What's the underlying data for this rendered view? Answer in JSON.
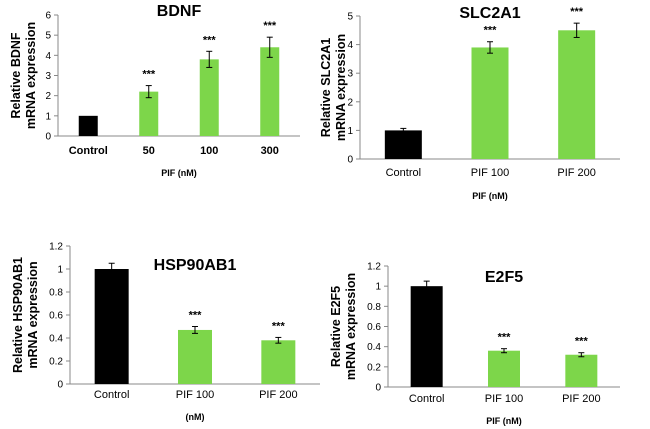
{
  "chart_data": [
    {
      "type": "bar",
      "title": "BDNF",
      "ylabel_lines": [
        "Relative BDNF",
        "mRNA expression"
      ],
      "xlabel": "PIF (nM)",
      "categories": [
        "Control",
        "50",
        "100",
        "300"
      ],
      "tick_labels": [
        "0",
        "1",
        "2",
        "3",
        "4",
        "5",
        "6"
      ],
      "ylim": [
        0,
        6
      ],
      "values": [
        1.0,
        2.2,
        3.8,
        4.4
      ],
      "errors": [
        0.0,
        0.3,
        0.4,
        0.5
      ],
      "significance": [
        "",
        "***",
        "***",
        "***"
      ],
      "colors": [
        "#000000",
        "#7dd64a",
        "#7dd64a",
        "#7dd64a"
      ],
      "grid": false
    },
    {
      "type": "bar",
      "title": "SLC2A1",
      "ylabel_lines": [
        "Relative SLC2A1",
        "mRNA expression"
      ],
      "xlabel": "PIF (nM)",
      "categories": [
        "Control",
        "PIF 100",
        "PIF 200"
      ],
      "tick_labels": [
        "0",
        "1",
        "2",
        "3",
        "4",
        "5"
      ],
      "ylim": [
        0,
        5
      ],
      "values": [
        1.0,
        3.9,
        4.5
      ],
      "errors": [
        0.07,
        0.2,
        0.25
      ],
      "significance": [
        "",
        "***",
        "***"
      ],
      "colors": [
        "#000000",
        "#7dd64a",
        "#7dd64a"
      ],
      "grid": false
    },
    {
      "type": "bar",
      "title": "HSP90AB1",
      "ylabel_lines": [
        "Relative HSP90AB1",
        "mRNA expression"
      ],
      "xlabel": "(nM)",
      "categories": [
        "Control",
        "PIF 100",
        "PIF 200"
      ],
      "tick_labels": [
        "0",
        "0.2",
        "0.4",
        "0.6",
        "0.8",
        "1",
        "1.2"
      ],
      "ylim": [
        0,
        1.2
      ],
      "values": [
        1.0,
        0.47,
        0.38
      ],
      "errors": [
        0.05,
        0.03,
        0.025
      ],
      "significance": [
        "",
        "***",
        "***"
      ],
      "colors": [
        "#000000",
        "#7dd64a",
        "#7dd64a"
      ],
      "grid": false
    },
    {
      "type": "bar",
      "title": "E2F5",
      "ylabel_lines": [
        "Relative E2F5",
        "mRNA expression"
      ],
      "xlabel": "PIF (nM)",
      "categories": [
        "Control",
        "PIF 100",
        "PIF 200"
      ],
      "tick_labels": [
        "0",
        "0.2",
        "0.4",
        "0.6",
        "0.8",
        "1",
        "1.2"
      ],
      "ylim": [
        0,
        1.2
      ],
      "values": [
        1.0,
        0.36,
        0.32
      ],
      "errors": [
        0.05,
        0.02,
        0.02
      ],
      "significance": [
        "",
        "***",
        "***"
      ],
      "colors": [
        "#000000",
        "#7dd64a",
        "#7dd64a"
      ],
      "grid": false
    }
  ]
}
